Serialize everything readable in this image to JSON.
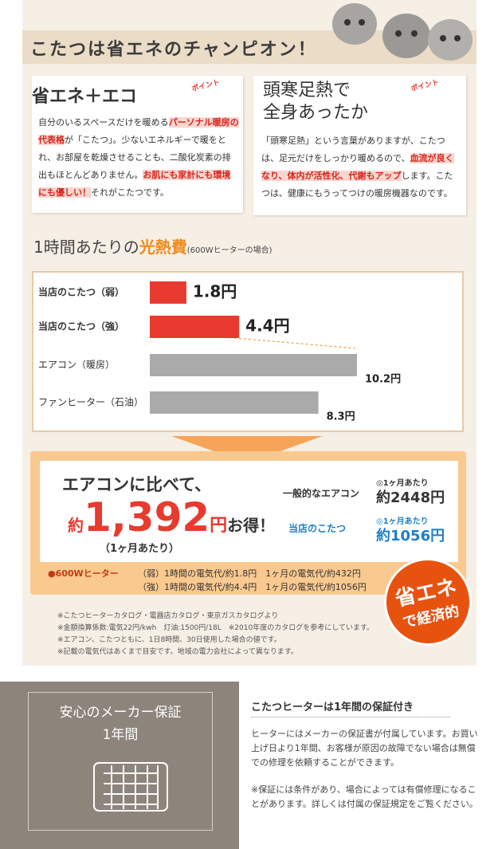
{
  "header": {
    "title": "こたつは省エネのチャンピオン！"
  },
  "points": [
    {
      "title": [
        "省エネ＋エコ"
      ],
      "badge": "ポイント",
      "body": [
        {
          "text": "自分のいるスペースだけを暖める"
        },
        {
          "text": "パーソナル暖房の代表格",
          "highlight": true
        },
        {
          "text": "が「こたつ」。少ないエネルギーで暖をとれ、お部屋を乾燥させることも、二酸化炭素の排出もほとんどありません。"
        },
        {
          "text": "お肌にも家計にも環境にも優しい！",
          "highlight": true
        },
        {
          "text": "それがこたつです。"
        }
      ]
    },
    {
      "title": [
        "頭寒足熱で",
        "全身あったか"
      ],
      "badge": "ポイント",
      "body": [
        {
          "text": "「頭寒足熱」という言葉がありますが、こたつは、足元だけをしっかり暖めるので、"
        },
        {
          "text": "血流が良くなり、体内が活性化、代謝もアップ",
          "highlight": true
        },
        {
          "text": "します。こたつは、健康にもうってつけの暖房機器なのです。"
        }
      ]
    }
  ],
  "chart_data": {
    "type": "bar",
    "orientation": "horizontal",
    "title": "1時間あたりの",
    "title_highlight": "光熱費",
    "subtitle": "(600Wヒーターの場合)",
    "categories": [
      "当店のこたつ（弱）",
      "当店のこたつ（強）",
      "エアコン（暖房）",
      "ファンヒーター（石油）"
    ],
    "values": [
      1.8,
      4.4,
      10.2,
      8.3
    ],
    "value_labels": [
      "1.8円",
      "4.4円",
      "10.2円",
      "8.3円"
    ],
    "colors": [
      "#e83a2e",
      "#e83a2e",
      "#aaaaaa",
      "#aaaaaa"
    ]
  },
  "savings": {
    "lead": "エアコンに比べて、",
    "prefix": "約",
    "amount": "1,392",
    "unit": "円",
    "suffix": "お得！",
    "period": "（1ヶ月あたり）",
    "compare": [
      {
        "label": "一般的なエアコン",
        "period": "◎1ヶ月あたり",
        "value": "約2448円"
      },
      {
        "label": "当店のこたつ",
        "period": "◎1ヶ月あたり",
        "value": "約1056円"
      }
    ],
    "heater": "●600Wヒーター",
    "rows": [
      "（弱）1時間の電気代/約1.8円　1ヶ月の電気代/約432円",
      "（強）1時間の電気代/約4.4円　1ヶ月の電気代/約1056円"
    ]
  },
  "badge": [
    "省エネ",
    "で経済的"
  ],
  "notes": [
    "※こたつヒーターカタログ・電器店カタログ・東京ガスカタログより",
    "※金額換算係数:電気22円/kwh　灯油:1500円/18L　※2010年度のカタログを参考にしています。",
    "※エアコン、こたつともに、1日8時間、30日使用した場合の値です。",
    "※記載の電気代はあくまで目安です。地域の電力会社によって異なります。"
  ],
  "warranty": {
    "badge": [
      "安心のメーカー保証",
      "1年間"
    ],
    "heading": "こたつヒーターは1年間の保証付き",
    "paragraphs": [
      "ヒーターにはメーカーの保証書が付属しています。お買い上げ日より1年間、お客様が原因の故障でない場合は無償での修理を依頼することができます。",
      "※保証には条件があり、場合によっては有償修理になることがあります。詳しくは付属の保証規定をご覧ください。"
    ]
  }
}
